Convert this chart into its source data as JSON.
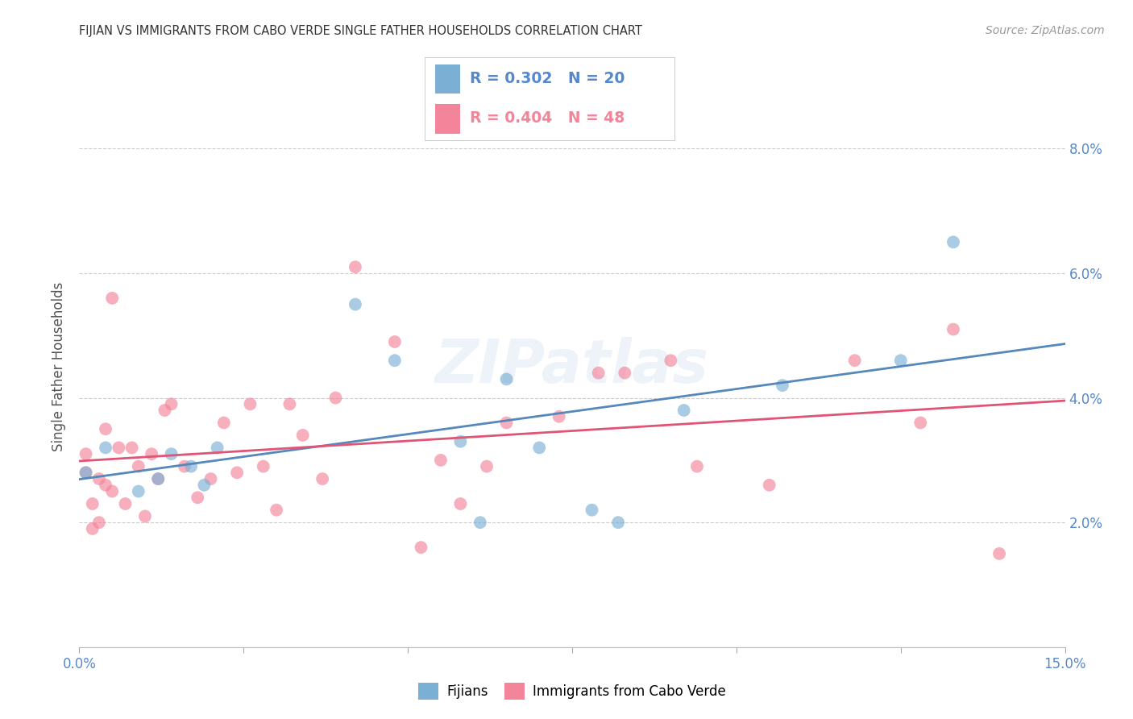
{
  "title": "FIJIAN VS IMMIGRANTS FROM CABO VERDE SINGLE FATHER HOUSEHOLDS CORRELATION CHART",
  "source": "Source: ZipAtlas.com",
  "ylabel": "Single Father Households",
  "xlabel": "",
  "watermark": "ZIPatlas",
  "xlim": [
    0.0,
    0.15
  ],
  "ylim": [
    0.0,
    0.09
  ],
  "xticks": [
    0.0,
    0.025,
    0.05,
    0.075,
    0.1,
    0.125,
    0.15
  ],
  "yticks": [
    0.0,
    0.02,
    0.04,
    0.06,
    0.08
  ],
  "ytick_labels": [
    "",
    "2.0%",
    "4.0%",
    "6.0%",
    "8.0%"
  ],
  "xtick_labels": [
    "0.0%",
    "",
    "",
    "",
    "",
    "",
    "15.0%"
  ],
  "fijian_R": 0.302,
  "fijian_N": 20,
  "cabo_verde_R": 0.404,
  "cabo_verde_N": 48,
  "blue_color": "#7BAFD4",
  "pink_color": "#F4849A",
  "line_blue": "#5588BB",
  "line_pink": "#E05575",
  "fijian_x": [
    0.001,
    0.004,
    0.009,
    0.012,
    0.014,
    0.017,
    0.019,
    0.021,
    0.042,
    0.048,
    0.058,
    0.061,
    0.065,
    0.07,
    0.078,
    0.082,
    0.092,
    0.107,
    0.125,
    0.133
  ],
  "fijian_y": [
    0.028,
    0.032,
    0.025,
    0.027,
    0.031,
    0.029,
    0.026,
    0.032,
    0.055,
    0.046,
    0.033,
    0.02,
    0.043,
    0.032,
    0.022,
    0.02,
    0.038,
    0.042,
    0.046,
    0.065
  ],
  "cabo_verde_x": [
    0.001,
    0.001,
    0.002,
    0.002,
    0.003,
    0.003,
    0.004,
    0.004,
    0.005,
    0.005,
    0.006,
    0.007,
    0.008,
    0.009,
    0.01,
    0.011,
    0.012,
    0.013,
    0.014,
    0.016,
    0.018,
    0.02,
    0.022,
    0.024,
    0.026,
    0.028,
    0.03,
    0.032,
    0.034,
    0.037,
    0.039,
    0.042,
    0.048,
    0.052,
    0.055,
    0.058,
    0.062,
    0.065,
    0.073,
    0.079,
    0.083,
    0.09,
    0.094,
    0.105,
    0.118,
    0.128,
    0.133,
    0.14
  ],
  "cabo_verde_y": [
    0.028,
    0.031,
    0.019,
    0.023,
    0.02,
    0.027,
    0.026,
    0.035,
    0.056,
    0.025,
    0.032,
    0.023,
    0.032,
    0.029,
    0.021,
    0.031,
    0.027,
    0.038,
    0.039,
    0.029,
    0.024,
    0.027,
    0.036,
    0.028,
    0.039,
    0.029,
    0.022,
    0.039,
    0.034,
    0.027,
    0.04,
    0.061,
    0.049,
    0.016,
    0.03,
    0.023,
    0.029,
    0.036,
    0.037,
    0.044,
    0.044,
    0.046,
    0.029,
    0.026,
    0.046,
    0.036,
    0.051,
    0.015
  ],
  "background_color": "#FFFFFF",
  "grid_color": "#CCCCCC",
  "tick_color": "#5588CC",
  "title_color": "#333333"
}
